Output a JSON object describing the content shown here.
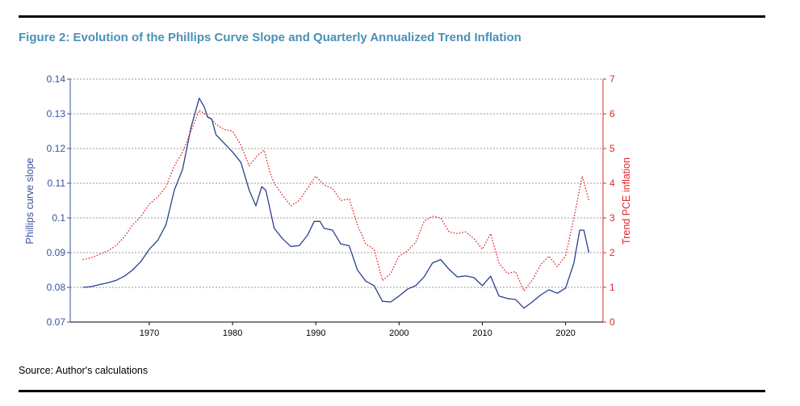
{
  "figure": {
    "title": "Figure 2: Evolution of the Phillips Curve Slope and Quarterly Annualized Trend Inflation",
    "source": "Source: Author's calculations"
  },
  "colors": {
    "title": "#4a90b8",
    "slope_line": "#2b3f8f",
    "inflation_line": "#e0262b",
    "grid": "#9a9a9a"
  },
  "chart_data": {
    "type": "line",
    "title": "",
    "xlabel": "",
    "ylabel_left": "Phillips curve slope",
    "ylabel_right": "Trend PCE inflation",
    "xlim": [
      1960.5,
      2024.5
    ],
    "ylim_left": [
      0.07,
      0.14
    ],
    "ylim_right": [
      0,
      7
    ],
    "x_ticks": [
      1970,
      1980,
      1990,
      2000,
      2010,
      2020
    ],
    "y_left_ticks": [
      "0.07",
      "0.08",
      "0.09",
      "0.1",
      "0.11",
      "0.12",
      "0.13",
      "0.14"
    ],
    "y_right_ticks": [
      "0",
      "1",
      "2",
      "3",
      "4",
      "5",
      "6",
      "7"
    ],
    "grid": "horizontal dotted",
    "legend": "none",
    "series": [
      {
        "axis": "left",
        "style": "solid",
        "color": "#2b3f8f",
        "points": [
          [
            1962,
            0.08
          ],
          [
            1963,
            0.0802
          ],
          [
            1964,
            0.0808
          ],
          [
            1965,
            0.0813
          ],
          [
            1966,
            0.082
          ],
          [
            1967,
            0.0832
          ],
          [
            1968,
            0.085
          ],
          [
            1969,
            0.0875
          ],
          [
            1970,
            0.091
          ],
          [
            1971,
            0.0935
          ],
          [
            1972,
            0.098
          ],
          [
            1973,
            0.108
          ],
          [
            1974,
            0.114
          ],
          [
            1975,
            0.126
          ],
          [
            1976,
            0.1345
          ],
          [
            1976.6,
            0.132
          ],
          [
            1977,
            0.129
          ],
          [
            1977.5,
            0.1285
          ],
          [
            1978,
            0.124
          ],
          [
            1979,
            0.1215
          ],
          [
            1980,
            0.119
          ],
          [
            1981,
            0.116
          ],
          [
            1982,
            0.108
          ],
          [
            1982.8,
            0.1035
          ],
          [
            1983.5,
            0.109
          ],
          [
            1984,
            0.108
          ],
          [
            1985,
            0.097
          ],
          [
            1986,
            0.094
          ],
          [
            1987,
            0.0918
          ],
          [
            1988,
            0.092
          ],
          [
            1989,
            0.095
          ],
          [
            1989.8,
            0.099
          ],
          [
            1990.5,
            0.099
          ],
          [
            1991,
            0.097
          ],
          [
            1992,
            0.0965
          ],
          [
            1993,
            0.0925
          ],
          [
            1994,
            0.092
          ],
          [
            1995,
            0.085
          ],
          [
            1996,
            0.0818
          ],
          [
            1997,
            0.0805
          ],
          [
            1998,
            0.076
          ],
          [
            1999,
            0.0758
          ],
          [
            2000,
            0.0775
          ],
          [
            2001,
            0.0795
          ],
          [
            2002,
            0.0805
          ],
          [
            2003,
            0.083
          ],
          [
            2004,
            0.087
          ],
          [
            2005,
            0.088
          ],
          [
            2006,
            0.0852
          ],
          [
            2007,
            0.083
          ],
          [
            2008,
            0.0833
          ],
          [
            2009,
            0.0828
          ],
          [
            2010,
            0.0805
          ],
          [
            2011,
            0.0832
          ],
          [
            2012,
            0.0775
          ],
          [
            2013,
            0.0768
          ],
          [
            2014,
            0.0765
          ],
          [
            2015,
            0.074
          ],
          [
            2016,
            0.0758
          ],
          [
            2017,
            0.0778
          ],
          [
            2018,
            0.0793
          ],
          [
            2019,
            0.0783
          ],
          [
            2020,
            0.0798
          ],
          [
            2021,
            0.087
          ],
          [
            2021.7,
            0.0965
          ],
          [
            2022.2,
            0.0965
          ],
          [
            2022.8,
            0.09
          ]
        ]
      },
      {
        "axis": "right",
        "style": "dotted",
        "color": "#e0262b",
        "points": [
          [
            1962,
            1.8
          ],
          [
            1963,
            1.85
          ],
          [
            1964,
            1.95
          ],
          [
            1965,
            2.05
          ],
          [
            1966,
            2.2
          ],
          [
            1967,
            2.45
          ],
          [
            1968,
            2.8
          ],
          [
            1969,
            3.05
          ],
          [
            1970,
            3.4
          ],
          [
            1971,
            3.6
          ],
          [
            1972,
            3.9
          ],
          [
            1973,
            4.5
          ],
          [
            1974,
            4.9
          ],
          [
            1975,
            5.5
          ],
          [
            1976,
            6.1
          ],
          [
            1977,
            5.95
          ],
          [
            1978,
            5.7
          ],
          [
            1979,
            5.55
          ],
          [
            1980,
            5.5
          ],
          [
            1981,
            5.1
          ],
          [
            1982,
            4.5
          ],
          [
            1983,
            4.8
          ],
          [
            1983.8,
            4.95
          ],
          [
            1984.5,
            4.3
          ],
          [
            1985,
            4.0
          ],
          [
            1986,
            3.65
          ],
          [
            1987,
            3.35
          ],
          [
            1988,
            3.5
          ],
          [
            1989,
            3.85
          ],
          [
            1990,
            4.2
          ],
          [
            1991,
            3.95
          ],
          [
            1992,
            3.85
          ],
          [
            1993,
            3.5
          ],
          [
            1994,
            3.55
          ],
          [
            1995,
            2.8
          ],
          [
            1996,
            2.25
          ],
          [
            1997,
            2.1
          ],
          [
            1998,
            1.2
          ],
          [
            1999,
            1.4
          ],
          [
            2000,
            1.9
          ],
          [
            2001,
            2.05
          ],
          [
            2002,
            2.3
          ],
          [
            2003,
            2.9
          ],
          [
            2004,
            3.05
          ],
          [
            2005,
            3.0
          ],
          [
            2006,
            2.6
          ],
          [
            2007,
            2.55
          ],
          [
            2008,
            2.6
          ],
          [
            2009,
            2.4
          ],
          [
            2010,
            2.1
          ],
          [
            2011,
            2.55
          ],
          [
            2012,
            1.7
          ],
          [
            2013,
            1.4
          ],
          [
            2014,
            1.45
          ],
          [
            2015,
            0.9
          ],
          [
            2016,
            1.2
          ],
          [
            2017,
            1.65
          ],
          [
            2018,
            1.9
          ],
          [
            2019,
            1.6
          ],
          [
            2020,
            1.9
          ],
          [
            2021,
            3.0
          ],
          [
            2022,
            4.2
          ],
          [
            2022.8,
            3.5
          ]
        ]
      }
    ]
  }
}
